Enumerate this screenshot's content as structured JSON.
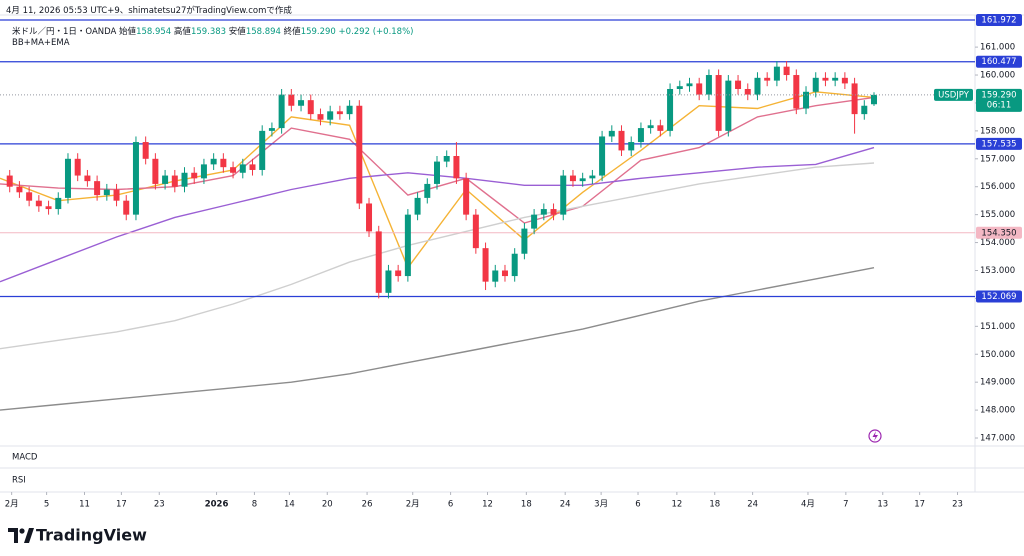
{
  "header": {
    "caption": "4月 11, 2026 05:53 UTC+9、shimatetsu27がTradingView.comで作成"
  },
  "legend": {
    "name": "米ドル／円・1日・OANDA",
    "items": [
      {
        "label": "始値",
        "value": 158.954
      },
      {
        "label": "高値",
        "value": 159.383
      },
      {
        "label": "安値",
        "value": 158.894
      },
      {
        "label": "終値",
        "value": 159.29,
        "value_label": "159.290"
      }
    ],
    "change": {
      "value": 0.292,
      "label": "+0.292"
    },
    "change_pct": {
      "value": 0.18,
      "label": "(+0.18%)"
    },
    "indicators": "BB+MA+EMA"
  },
  "panes": [
    "MACD",
    "RSI"
  ],
  "footer": {
    "brand": "TradingView"
  },
  "chart_data": {
    "type": "candlestick",
    "up_color": "#089981",
    "down_color": "#f23645",
    "xlim": [
      -1,
      99.4
    ],
    "ylim": [
      146.75,
      162.15
    ],
    "grid": false,
    "open": [
      156.4,
      156.0,
      155.8,
      155.5,
      155.3,
      155.2,
      155.6,
      157.0,
      156.4,
      156.2,
      155.7,
      155.9,
      155.5,
      155.0,
      157.6,
      157.0,
      156.1,
      156.4,
      156.0,
      156.5,
      156.3,
      156.8,
      157.0,
      156.7,
      156.5,
      156.8,
      156.6,
      158.0,
      158.1,
      159.3,
      158.9,
      159.1,
      158.6,
      158.4,
      158.7,
      158.6,
      158.9,
      155.4,
      154.4,
      152.2,
      153.0,
      152.8,
      155.0,
      155.6,
      156.1,
      156.9,
      157.1,
      156.3,
      155.0,
      153.8,
      152.6,
      153.0,
      152.8,
      153.6,
      154.5,
      155.0,
      155.2,
      155.0,
      156.4,
      156.2,
      156.3,
      156.4,
      157.8,
      158.0,
      157.3,
      157.6,
      158.1,
      158.2,
      158.0,
      159.5,
      159.6,
      159.7,
      159.3,
      160.0,
      158.0,
      159.8,
      159.5,
      159.3,
      159.9,
      159.8,
      160.3,
      160.0,
      158.8,
      159.4,
      159.9,
      159.8,
      159.9,
      159.7,
      158.6,
      158.954
    ],
    "high": [
      156.6,
      156.2,
      156.0,
      155.7,
      155.5,
      155.8,
      157.2,
      157.2,
      156.6,
      156.4,
      156.1,
      156.1,
      155.7,
      157.8,
      157.8,
      157.2,
      156.6,
      156.6,
      156.7,
      156.7,
      157.0,
      157.2,
      157.2,
      156.9,
      157.0,
      157.0,
      158.2,
      158.3,
      159.5,
      159.5,
      159.3,
      159.3,
      158.8,
      158.9,
      158.9,
      159.1,
      159.1,
      155.6,
      154.6,
      153.2,
      153.2,
      155.2,
      155.8,
      156.3,
      157.1,
      157.3,
      157.6,
      156.5,
      155.2,
      154.0,
      153.2,
      153.2,
      153.8,
      154.7,
      155.2,
      155.4,
      155.4,
      156.6,
      156.6,
      156.5,
      156.6,
      158.0,
      158.2,
      158.2,
      157.8,
      158.3,
      158.4,
      158.4,
      159.7,
      159.8,
      159.9,
      159.9,
      160.2,
      160.2,
      160.0,
      160.0,
      159.7,
      160.1,
      160.1,
      160.5,
      160.5,
      160.2,
      159.6,
      160.1,
      160.1,
      160.1,
      160.1,
      159.9,
      159.1,
      159.383
    ],
    "low": [
      155.8,
      155.6,
      155.3,
      155.1,
      155.0,
      155.0,
      155.4,
      156.2,
      156.0,
      155.5,
      155.5,
      155.3,
      154.8,
      154.8,
      156.8,
      155.9,
      155.9,
      155.8,
      155.8,
      156.1,
      156.1,
      156.6,
      156.5,
      156.3,
      156.3,
      156.4,
      156.4,
      157.8,
      157.9,
      158.7,
      158.7,
      158.4,
      158.2,
      158.2,
      158.4,
      158.4,
      155.2,
      154.2,
      152.0,
      152.0,
      152.6,
      152.6,
      154.8,
      155.4,
      155.9,
      156.7,
      156.1,
      154.8,
      153.6,
      152.3,
      152.4,
      152.6,
      152.6,
      153.4,
      154.3,
      154.8,
      154.8,
      154.8,
      156.0,
      156.0,
      156.1,
      156.2,
      157.6,
      157.1,
      157.1,
      157.4,
      157.9,
      157.8,
      157.8,
      159.3,
      159.4,
      159.1,
      159.1,
      157.8,
      157.8,
      159.3,
      159.1,
      159.1,
      159.6,
      159.6,
      159.8,
      158.6,
      158.6,
      159.2,
      159.6,
      159.6,
      159.5,
      157.9,
      158.4,
      158.894
    ],
    "close": [
      156.0,
      155.8,
      155.5,
      155.3,
      155.2,
      155.6,
      157.0,
      156.4,
      156.2,
      155.7,
      155.9,
      155.5,
      155.0,
      157.6,
      157.0,
      156.1,
      156.4,
      156.0,
      156.5,
      156.3,
      156.8,
      157.0,
      156.7,
      156.5,
      156.8,
      156.6,
      158.0,
      158.1,
      159.3,
      158.9,
      159.1,
      158.6,
      158.4,
      158.7,
      158.6,
      158.9,
      155.4,
      154.4,
      152.2,
      153.0,
      152.8,
      155.0,
      155.6,
      156.1,
      156.9,
      157.1,
      156.3,
      155.0,
      153.8,
      152.6,
      153.0,
      152.8,
      153.6,
      154.5,
      155.0,
      155.2,
      155.0,
      156.4,
      156.2,
      156.3,
      156.4,
      157.8,
      158.0,
      157.3,
      157.6,
      158.1,
      158.2,
      158.0,
      159.5,
      159.6,
      159.7,
      159.3,
      160.0,
      158.0,
      159.8,
      159.5,
      159.3,
      159.9,
      159.8,
      160.3,
      160.0,
      158.8,
      159.4,
      159.9,
      159.8,
      159.9,
      159.7,
      158.6,
      158.9,
      159.29
    ],
    "overlay_x": [
      -1,
      5,
      11,
      17,
      23,
      29,
      35,
      41,
      47,
      53,
      59,
      65,
      71,
      77,
      83,
      89
    ],
    "overlays": [
      {
        "color": "#f5b335",
        "values": [
          156.3,
          155.5,
          155.7,
          156.2,
          156.6,
          158.5,
          158.2,
          153.1,
          155.9,
          154.1,
          155.8,
          157.3,
          158.9,
          158.8,
          159.4,
          159.2
        ]
      },
      {
        "color": "#e0708e",
        "values": [
          156.1,
          155.95,
          155.9,
          156.0,
          156.4,
          158.1,
          157.7,
          155.7,
          156.3,
          154.7,
          155.3,
          156.95,
          157.4,
          158.5,
          158.9,
          159.2
        ]
      },
      {
        "color": "#9a5fd4",
        "values": [
          152.6,
          153.4,
          154.2,
          154.9,
          155.4,
          155.9,
          156.3,
          156.5,
          156.3,
          156.05,
          156.05,
          156.3,
          156.5,
          156.7,
          156.8,
          157.4
        ]
      },
      {
        "color": "#cfcfcf",
        "values": [
          150.2,
          150.5,
          150.8,
          151.2,
          151.8,
          152.5,
          153.3,
          153.9,
          154.4,
          154.9,
          155.3,
          155.7,
          156.1,
          156.4,
          156.7,
          156.85
        ]
      },
      {
        "color": "#8c8c8c",
        "values": [
          148.0,
          148.2,
          148.4,
          148.6,
          148.8,
          149.0,
          149.3,
          149.7,
          150.1,
          150.5,
          150.9,
          151.4,
          151.9,
          152.3,
          152.7,
          153.1
        ]
      }
    ],
    "levels": [
      {
        "value": 161.972,
        "color": "#2a3fd6"
      },
      {
        "value": 160.477,
        "color": "#2a3fd6"
      },
      {
        "value": 157.535,
        "color": "#2a3fd6"
      },
      {
        "value": 154.35,
        "label": "154.350",
        "color": "#f4b8c4"
      },
      {
        "value": 152.069,
        "color": "#2a3fd6"
      }
    ],
    "price_tag": {
      "symbol": "USDJPY",
      "value": 159.29,
      "label": "159.290",
      "countdown": "06:11",
      "color": "#089981"
    },
    "yticks": [
      {
        "value": 147,
        "label": "147.000"
      },
      {
        "value": 148,
        "label": "148.000"
      },
      {
        "value": 149,
        "label": "149.000"
      },
      {
        "value": 150,
        "label": "150.000"
      },
      {
        "value": 151,
        "label": "151.000"
      },
      {
        "value": 152,
        "label": "152.000"
      },
      {
        "value": 153,
        "label": "153.000"
      },
      {
        "value": 154,
        "label": "154.000"
      },
      {
        "value": 155,
        "label": "155.000"
      },
      {
        "value": 156,
        "label": "156.000"
      },
      {
        "value": 157,
        "label": "157.000"
      },
      {
        "value": 158,
        "label": "158.000"
      },
      {
        "value": 159,
        "label": "159.000"
      },
      {
        "value": 160,
        "label": "160.000"
      },
      {
        "value": 161,
        "label": "161.000"
      }
    ],
    "xticks": [
      {
        "value": 0.2,
        "label": "2月"
      },
      {
        "value": 3.8,
        "label": "5"
      },
      {
        "value": 7.7,
        "label": "11"
      },
      {
        "value": 11.5,
        "label": "17"
      },
      {
        "value": 15.4,
        "label": "23"
      },
      {
        "value": 21.3,
        "label": "2026"
      },
      {
        "value": 25.2,
        "label": "8"
      },
      {
        "value": 28.8,
        "label": "14"
      },
      {
        "value": 32.7,
        "label": "20"
      },
      {
        "value": 36.8,
        "label": "26"
      },
      {
        "value": 41.5,
        "label": "2月"
      },
      {
        "value": 45.4,
        "label": "6"
      },
      {
        "value": 49.2,
        "label": "12"
      },
      {
        "value": 53.2,
        "label": "18"
      },
      {
        "value": 57.2,
        "label": "24"
      },
      {
        "value": 60.9,
        "label": "3月"
      },
      {
        "value": 64.7,
        "label": "6"
      },
      {
        "value": 68.7,
        "label": "12"
      },
      {
        "value": 72.6,
        "label": "18"
      },
      {
        "value": 76.5,
        "label": "24"
      },
      {
        "value": 82.2,
        "label": "4月"
      },
      {
        "value": 86.1,
        "label": "7"
      },
      {
        "value": 89.9,
        "label": "13"
      },
      {
        "value": 93.7,
        "label": "17"
      },
      {
        "value": 97.6,
        "label": "23"
      }
    ]
  }
}
